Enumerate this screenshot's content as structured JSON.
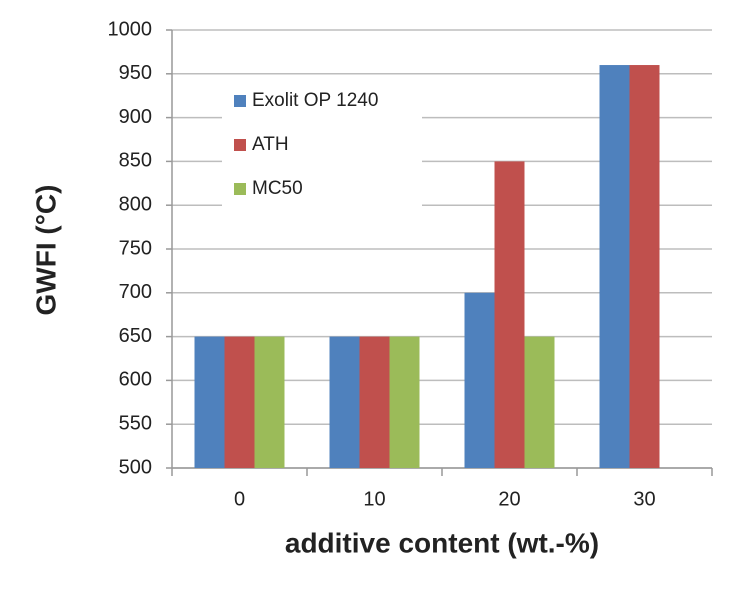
{
  "chart_data": {
    "type": "bar",
    "categories": [
      "0",
      "10",
      "20",
      "30"
    ],
    "series": [
      {
        "name": "Exolit OP 1240",
        "color": "#4f81bd",
        "values": [
          650,
          650,
          700,
          960
        ]
      },
      {
        "name": "ATH",
        "color": "#c0504d",
        "values": [
          650,
          650,
          850,
          960
        ]
      },
      {
        "name": "MC50",
        "color": "#9bbb59",
        "values": [
          650,
          650,
          650,
          null
        ]
      }
    ],
    "ylim": [
      500,
      1000
    ],
    "yticks": [
      500,
      550,
      600,
      650,
      700,
      750,
      800,
      850,
      900,
      950,
      1000
    ],
    "y_label": "GWFI (°C)",
    "x_label": "additive content (wt.-%)",
    "grid": true,
    "legend_position": "upper-left"
  }
}
